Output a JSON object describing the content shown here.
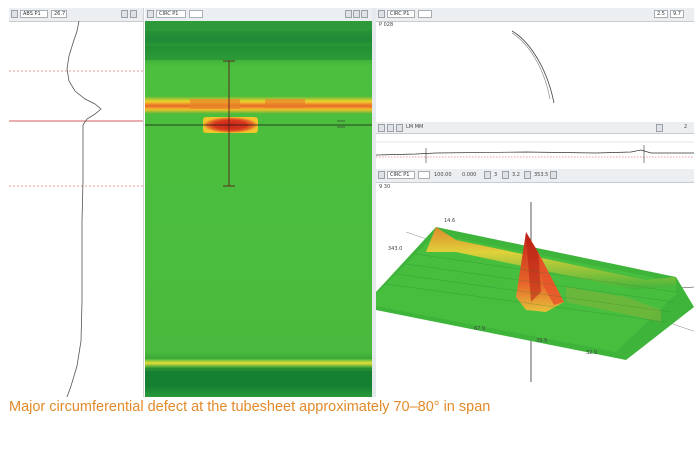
{
  "caption": "Major circumferential defect at the tubesheet approximately 70–80° in span",
  "panels": {
    "left": {
      "channel": "ABS P1",
      "value": "26.7"
    },
    "center": {
      "channel": "CIRC P1"
    },
    "top_right": {
      "channel": "CIRC P1",
      "label_1": "2.5",
      "label_2": "9.7",
      "corner": "P 028"
    },
    "mid_right": {
      "toolbar_text": "LM MM",
      "right": "2"
    },
    "bottom_right": {
      "channel": "CIRC P1",
      "readout_1": "100.00",
      "readout_2": "0.000",
      "readout_3": "3",
      "readout_4": "3.2",
      "readout_5": "353.5",
      "corner": "9 30",
      "axis_labels": [
        "14.6",
        "343.0",
        "67.9",
        "39.9",
        "32.9"
      ]
    }
  },
  "colors": {
    "caption": "#e28a2a",
    "signal_green": "#3fb43b",
    "defect_red": "#d8361c",
    "cursor_red": "#d0303a"
  }
}
